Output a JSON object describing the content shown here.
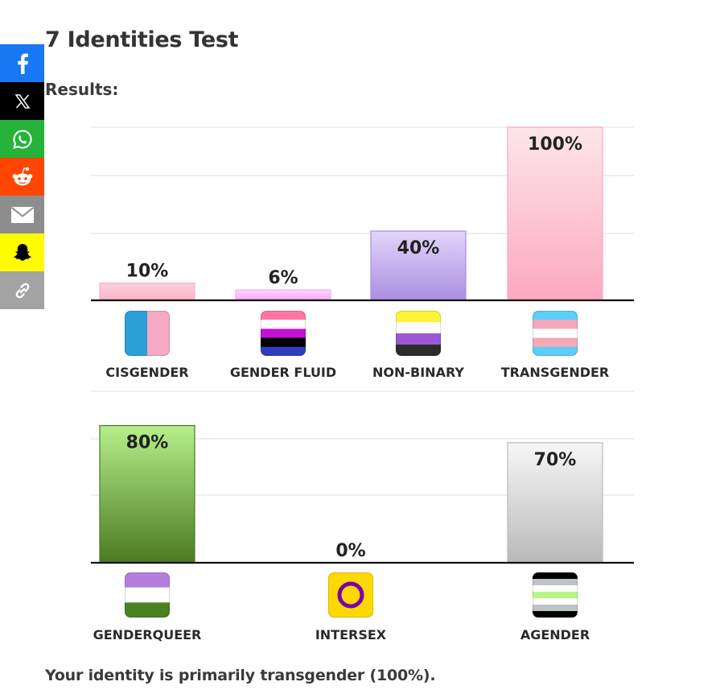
{
  "page": {
    "title": "7 Identities Test",
    "results_label": "Results:",
    "summary": "Your identity is primarily transgender (100%)."
  },
  "share_bar": [
    {
      "name": "facebook",
      "icon": "facebook-icon",
      "color": "#1877f2"
    },
    {
      "name": "x",
      "icon": "x-icon",
      "color": "#000000"
    },
    {
      "name": "whatsapp",
      "icon": "whatsapp-icon",
      "color": "#25b33a"
    },
    {
      "name": "reddit",
      "icon": "reddit-icon",
      "color": "#ff4500"
    },
    {
      "name": "email",
      "icon": "email-icon",
      "color": "#8d8d8d"
    },
    {
      "name": "snapchat",
      "icon": "snapchat-icon",
      "color": "#fffc00"
    },
    {
      "name": "copy-link",
      "icon": "link-icon",
      "color": "#a3a3a3"
    }
  ],
  "chart_data": [
    {
      "type": "bar",
      "ylim": [
        0,
        100
      ],
      "grid": true,
      "categories": [
        "CISGENDER",
        "GENDER FLUID",
        "NON-BINARY",
        "TRANSGENDER"
      ],
      "values": [
        10,
        6,
        40,
        100
      ],
      "value_labels": [
        "10%",
        "6%",
        "40%",
        "100%"
      ],
      "colors": [
        [
          "#fdd0dd",
          "#f7b3c6"
        ],
        [
          "#ffd6ff",
          "#f7a8f5"
        ],
        [
          "#e4d4fb",
          "#a98ee0"
        ],
        [
          "#fde6ea",
          "#fca8c0"
        ]
      ],
      "flags": [
        {
          "icon": "cisgender-flag-icon",
          "stripes": [
            "#2a9fd8",
            "#f5a9c3"
          ],
          "direction": "vertical"
        },
        {
          "icon": "genderfluid-flag-icon",
          "stripes": [
            "#ff76a4",
            "#ffffff",
            "#c011d7",
            "#000000",
            "#2f3cbe"
          ],
          "direction": "horizontal"
        },
        {
          "icon": "nonbinary-flag-icon",
          "stripes": [
            "#fcf434",
            "#ffffff",
            "#9c59d1",
            "#2c2c2c"
          ],
          "direction": "horizontal"
        },
        {
          "icon": "transgender-flag-icon",
          "stripes": [
            "#5bcefa",
            "#f5a9b8",
            "#ffffff",
            "#f5a9b8",
            "#5bcefa"
          ],
          "direction": "horizontal"
        }
      ]
    },
    {
      "type": "bar",
      "ylim": [
        0,
        100
      ],
      "grid": true,
      "categories": [
        "GENDERQUEER",
        "INTERSEX",
        "AGENDER"
      ],
      "values": [
        80,
        0,
        70
      ],
      "value_labels": [
        "80%",
        "0%",
        "70%"
      ],
      "colors": [
        [
          "#b6f08a",
          "#4a7a22"
        ],
        [
          "#ffd800",
          "#ffd800"
        ],
        [
          "#f7f7f7",
          "#b9b9b9"
        ]
      ],
      "flags": [
        {
          "icon": "genderqueer-flag-icon",
          "stripes": [
            "#b57edc",
            "#ffffff",
            "#4a8123"
          ],
          "direction": "horizontal"
        },
        {
          "icon": "intersex-flag-icon",
          "stripes": [
            "#ffd800"
          ],
          "direction": "ring",
          "ring": "#7902aa"
        },
        {
          "icon": "agender-flag-icon",
          "stripes": [
            "#000000",
            "#bcc4c7",
            "#ffffff",
            "#b7f684",
            "#ffffff",
            "#bcc4c7",
            "#000000"
          ],
          "direction": "horizontal"
        }
      ]
    }
  ]
}
